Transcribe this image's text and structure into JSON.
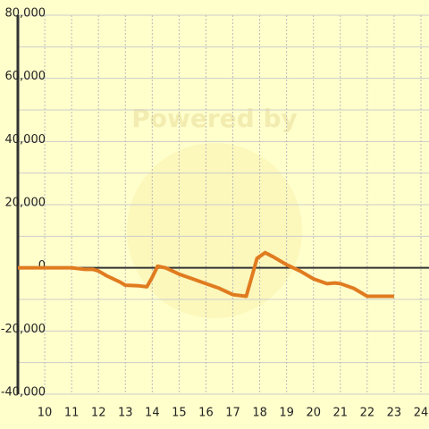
{
  "chart_data": {
    "type": "line",
    "watermark": "Powered by",
    "x": [
      9,
      11,
      11.5,
      11.8,
      12,
      12.3,
      12.8,
      13,
      13.5,
      13.8,
      14,
      14.2,
      14.5,
      15,
      15.5,
      16,
      16.5,
      17,
      17.5,
      17.7,
      17.9,
      18.2,
      18.5,
      19,
      19.5,
      20,
      20.5,
      20.8,
      21,
      21.5,
      22,
      22.5,
      23
    ],
    "series": [
      {
        "color": "#e07b20",
        "values": [
          0,
          0,
          -500,
          -500,
          -1000,
          -2500,
          -4500,
          -5500,
          -5700,
          -6000,
          -3000,
          500,
          0,
          -2000,
          -3500,
          -5000,
          -6500,
          -8500,
          -9000,
          -3000,
          3000,
          4800,
          3500,
          1000,
          -1000,
          -3500,
          -5000,
          -4800,
          -5000,
          -6500,
          -9000,
          -9000,
          -9000
        ]
      }
    ],
    "xlim": [
      9,
      24.3
    ],
    "xticks": [
      10,
      11,
      12,
      13,
      14,
      15,
      16,
      17,
      18,
      19,
      20,
      21,
      22,
      23,
      24
    ],
    "ylim": [
      -40000,
      80000
    ],
    "yticks": [
      {
        "value": -40000,
        "label": "-40,000"
      },
      {
        "value": -20000,
        "label": "-20,000"
      },
      0,
      {
        "value": 20000,
        "label": "20,000"
      },
      {
        "value": 40000,
        "label": "40,000"
      },
      {
        "value": 60000,
        "label": "60,000"
      },
      {
        "value": 80000,
        "label": "80,000"
      }
    ],
    "yminorticks": [
      -30000,
      -10000,
      10000,
      30000,
      50000,
      70000
    ],
    "grid": true
  }
}
